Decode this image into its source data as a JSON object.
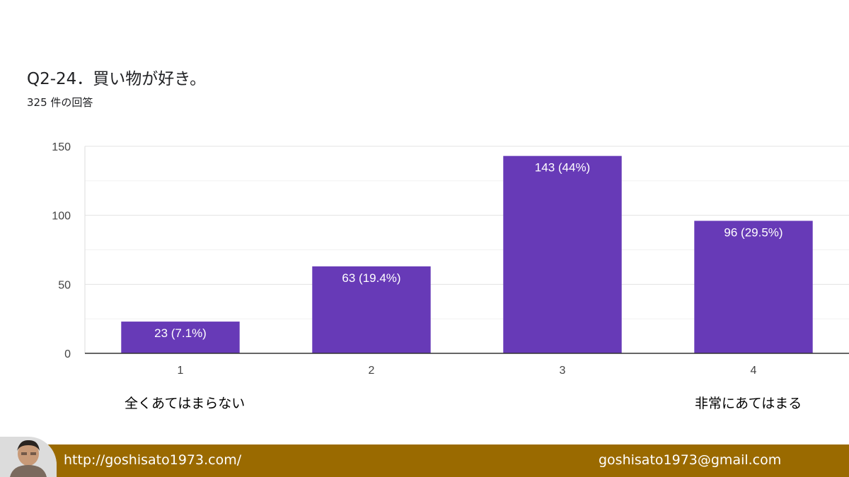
{
  "page": {
    "title": "Q2-24．買い物が好き。",
    "subtitle": "325 件の回答"
  },
  "chart_data": {
    "type": "bar",
    "title": "Q2-24．買い物が好き。",
    "categories": [
      "1",
      "2",
      "3",
      "4"
    ],
    "values": [
      23,
      63,
      143,
      96
    ],
    "data_labels": [
      "23 (7.1%)",
      "63 (19.4%)",
      "143 (44%)",
      "96 (29.5%)"
    ],
    "y_ticks": [
      0,
      50,
      100,
      150
    ],
    "ylim": [
      0,
      150
    ],
    "grid": true,
    "bar_color": "#673ab7",
    "xlabel": "",
    "ylabel": ""
  },
  "scale": {
    "low_label": "全くあてはまらない",
    "high_label": "非常にあてはまる"
  },
  "footer": {
    "url": "http://goshisato1973.com/",
    "email": "goshisato1973@gmail.com",
    "background_color": "#9a6a00"
  }
}
